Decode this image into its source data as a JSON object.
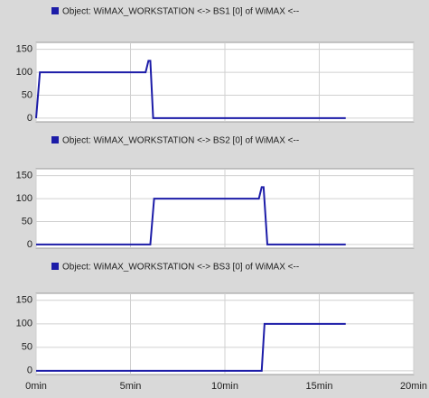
{
  "chart_data": [
    {
      "type": "line",
      "x": [
        0,
        0.2,
        5.8,
        5.95,
        6.05,
        6.2,
        16.4
      ],
      "series": [
        {
          "name": "Object: WiMAX_WORKSTATION <-> BS1 [0] of WiMAX <--",
          "color": "#1c1ca8",
          "values": [
            0,
            100,
            100,
            125,
            125,
            0,
            0
          ]
        }
      ],
      "xlim": [
        0,
        20
      ],
      "ylim": [
        -8,
        165
      ],
      "yticks": [
        0,
        50,
        100,
        150
      ],
      "grid": true
    },
    {
      "type": "line",
      "x": [
        0,
        6.05,
        6.25,
        11.8,
        11.95,
        12.05,
        12.25,
        16.4
      ],
      "series": [
        {
          "name": "Object: WiMAX_WORKSTATION <-> BS2 [0] of WiMAX <--",
          "color": "#1c1ca8",
          "values": [
            0,
            0,
            100,
            100,
            125,
            125,
            0,
            0
          ]
        }
      ],
      "xlim": [
        0,
        20
      ],
      "ylim": [
        -8,
        165
      ],
      "yticks": [
        0,
        50,
        100,
        150
      ],
      "grid": true
    },
    {
      "type": "line",
      "x": [
        0,
        11.95,
        12.1,
        16.4
      ],
      "series": [
        {
          "name": "Object: WiMAX_WORKSTATION <-> BS3 [0] of WiMAX <--",
          "color": "#1c1ca8",
          "values": [
            0,
            0,
            100,
            100
          ]
        }
      ],
      "xlim": [
        0,
        20
      ],
      "ylim": [
        -8,
        165
      ],
      "yticks": [
        0,
        50,
        100,
        150
      ],
      "xticks": [
        {
          "value": 0,
          "label": "0min"
        },
        {
          "value": 5,
          "label": "5min"
        },
        {
          "value": 10,
          "label": "10min"
        },
        {
          "value": 15,
          "label": "15min"
        },
        {
          "value": 20,
          "label": "20min"
        }
      ],
      "grid": true
    }
  ]
}
